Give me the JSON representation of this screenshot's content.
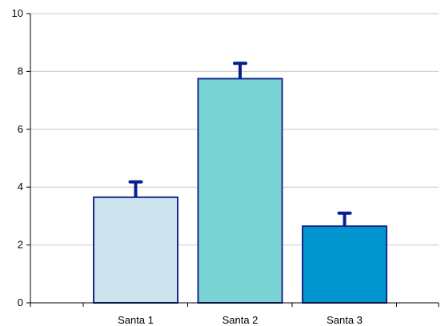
{
  "chart_data": {
    "type": "bar",
    "categories": [
      "Santa 1",
      "Santa 2",
      "Santa 3"
    ],
    "values": [
      3.65,
      7.75,
      2.65
    ],
    "error_upper": [
      4.18,
      8.28,
      3.1
    ],
    "ylim": [
      0,
      10
    ],
    "yticks": [
      "0",
      "2",
      "4",
      "6",
      "8",
      "10"
    ],
    "grid": true,
    "legend": "none",
    "colors": {
      "bars": [
        "#cce3ee",
        "#7ad4d4",
        "#0095cf"
      ],
      "bar_stroke": "#1a2a8c",
      "error_bar": "#0a1f8f",
      "grid": "#c8c8c8",
      "axis": "#000000"
    }
  }
}
